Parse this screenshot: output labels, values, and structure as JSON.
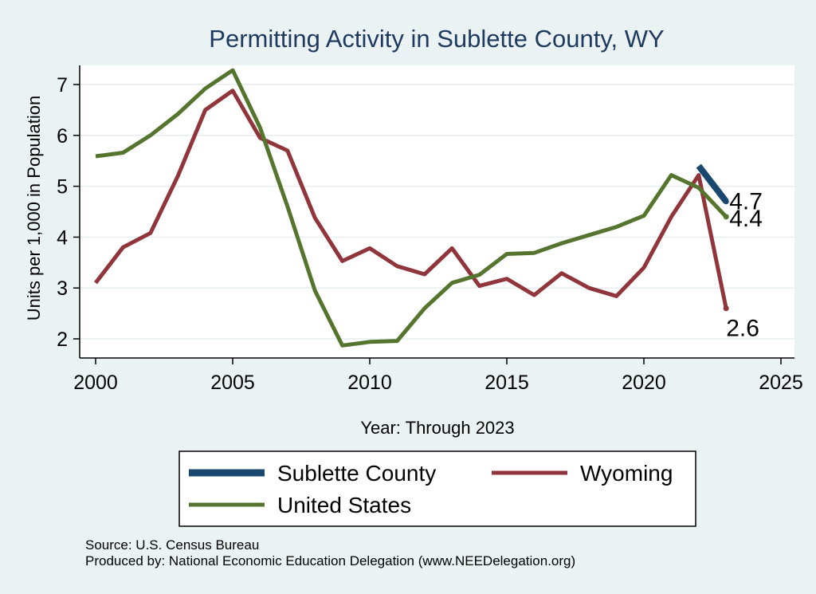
{
  "chart_data": {
    "type": "line",
    "title": "Permitting Activity in Sublette County, WY",
    "xlabel": "Year: Through 2023",
    "ylabel": "Units per 1,000 in Population",
    "xlim": [
      2000,
      2025
    ],
    "ylim": [
      1.7,
      7.5
    ],
    "xticks": [
      "2000",
      "2005",
      "2010",
      "2015",
      "2020",
      "2025"
    ],
    "yticks": [
      "2",
      "3",
      "4",
      "5",
      "6",
      "7"
    ],
    "grid": true,
    "series": [
      {
        "name": "Sublette County",
        "color": "#1a476f",
        "x": [
          2022,
          2023
        ],
        "values": [
          5.4,
          4.7
        ],
        "end_label": "4.7"
      },
      {
        "name": "Wyoming",
        "color": "#90353b",
        "x": [
          2000,
          2001,
          2002,
          2003,
          2004,
          2005,
          2006,
          2007,
          2008,
          2009,
          2010,
          2011,
          2012,
          2013,
          2014,
          2015,
          2016,
          2017,
          2018,
          2019,
          2020,
          2021,
          2022,
          2023
        ],
        "values": [
          3.1,
          3.8,
          4.08,
          5.2,
          6.5,
          6.88,
          5.95,
          5.7,
          4.38,
          3.53,
          3.78,
          3.43,
          3.27,
          3.78,
          3.04,
          3.18,
          2.86,
          3.29,
          3.0,
          2.84,
          3.4,
          4.4,
          5.22,
          2.6
        ],
        "end_label": "2.6"
      },
      {
        "name": "United States",
        "color": "#55752f",
        "x": [
          2000,
          2001,
          2002,
          2003,
          2004,
          2005,
          2006,
          2007,
          2008,
          2009,
          2010,
          2011,
          2012,
          2013,
          2014,
          2015,
          2016,
          2017,
          2018,
          2019,
          2020,
          2021,
          2022,
          2023
        ],
        "values": [
          5.59,
          5.66,
          6.0,
          6.42,
          6.92,
          7.28,
          6.15,
          4.6,
          2.95,
          1.87,
          1.94,
          1.96,
          2.6,
          3.1,
          3.26,
          3.67,
          3.69,
          3.88,
          4.04,
          4.2,
          4.42,
          5.22,
          4.97,
          4.4
        ],
        "end_label": "4.4"
      }
    ],
    "legend": {
      "position": "bottom",
      "entries": [
        "Sublette County",
        "Wyoming",
        "United States"
      ]
    }
  },
  "footer": {
    "source": "Source: U.S. Census Bureau",
    "produced_by": "Produced by: National Economic Education Delegation (www.NEEDelegation.org)"
  }
}
